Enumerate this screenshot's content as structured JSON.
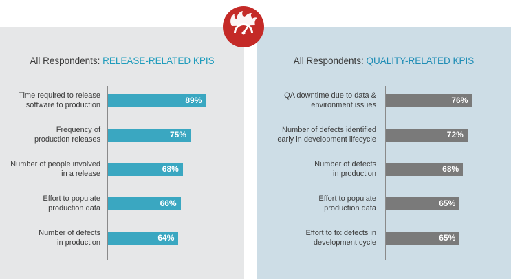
{
  "chart_data": [
    {
      "type": "bar",
      "orientation": "horizontal",
      "title_prefix": "All Respondents: ",
      "title_accent": "RELEASE-RELATED KPIS",
      "categories": [
        "Time required to release\nsoftware to production",
        "Frequency of\nproduction releases",
        "Number of people involved\nin a release",
        "Effort to populate\nproduction data",
        "Number of defects\nin production"
      ],
      "values": [
        89,
        75,
        68,
        66,
        64
      ],
      "labels": [
        "89%",
        "75%",
        "68%",
        "66%",
        "64%"
      ],
      "xlim": [
        0,
        100
      ],
      "bar_color": "#3aa7c1"
    },
    {
      "type": "bar",
      "orientation": "horizontal",
      "title_prefix": "All Respondents: ",
      "title_accent": "QUALITY-RELATED KPIS",
      "categories": [
        "QA downtime due to data &\nenvironment issues",
        "Number of defects identified\nearly in development lifecycle",
        "Number of defects\nin production",
        "Effort to populate\nproduction data",
        "Effort to fix defects in\ndevelopment cycle"
      ],
      "values": [
        76,
        72,
        68,
        65,
        65
      ],
      "labels": [
        "76%",
        "72%",
        "68%",
        "65%",
        "65%"
      ],
      "xlim": [
        0,
        100
      ],
      "bar_color": "#7a7a7a"
    }
  ],
  "badge": {
    "icon": "speedometer-flame-icon",
    "color": "#c42a27"
  }
}
